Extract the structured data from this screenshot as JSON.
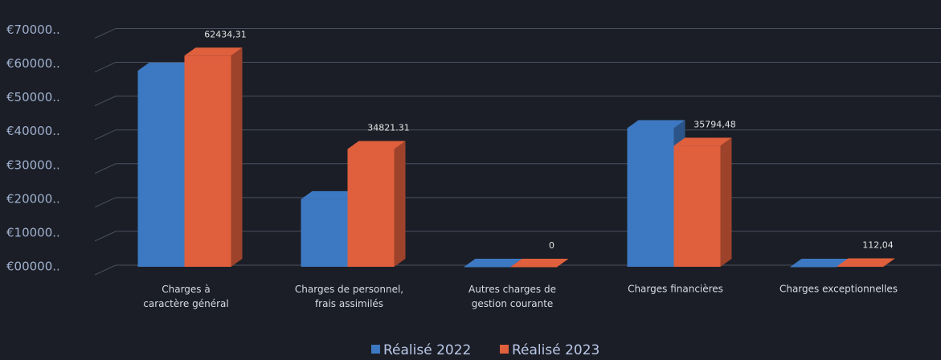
{
  "chart_data": {
    "type": "bar3d",
    "categories": [
      "Charges à caractère général",
      "Charges de personnel, frais assimilés",
      "Autres charges de gestion courante",
      "Charges financières",
      "Charges exceptionnelles"
    ],
    "series": [
      {
        "name": "Réalisé 2022",
        "color": "#3d79c2",
        "values": [
          58000,
          20000,
          0,
          41000,
          0
        ]
      },
      {
        "name": "Réalisé 2023",
        "color": "#e0603d",
        "values": [
          62434.31,
          34821.31,
          0,
          35794.48,
          112.04
        ],
        "value_labels": [
          "62434,31",
          "34821.31",
          "0",
          "35794,48",
          "112,04"
        ]
      }
    ],
    "ylim": [
      0,
      77000
    ],
    "yticks": [
      {
        "value": 0,
        "label": "€00000.."
      },
      {
        "value": 10000,
        "label": "€10000.."
      },
      {
        "value": 20000,
        "label": "€20000.."
      },
      {
        "value": 30000,
        "label": "€30000.."
      },
      {
        "value": 40000,
        "label": "€40000.."
      },
      {
        "value": 50000,
        "label": "€50000.."
      },
      {
        "value": 60000,
        "label": "€60000.."
      },
      {
        "value": 70000,
        "label": "€70000.."
      }
    ],
    "grid": true,
    "legend": "bottom"
  }
}
